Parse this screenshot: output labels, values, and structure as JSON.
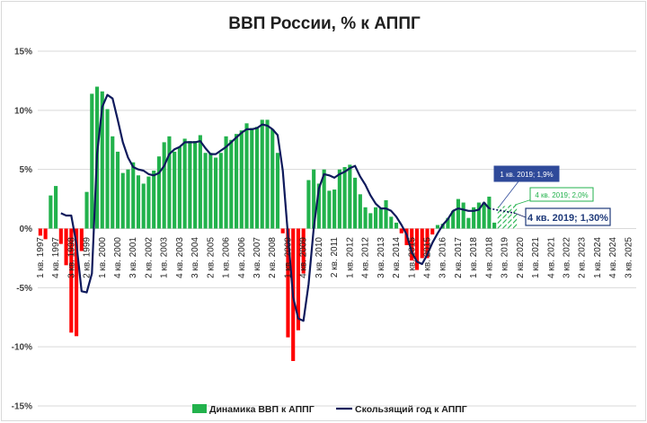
{
  "chart_data": {
    "type": "bar",
    "title": "ВВП России, % к АППГ",
    "xlabel": "",
    "ylabel": "",
    "ylim": [
      -15,
      15
    ],
    "yticks": [
      "15%",
      "10%",
      "5%",
      "0%",
      "-5%",
      "-10%",
      "-15%"
    ],
    "grid": true,
    "legend_position": "bottom",
    "colors": {
      "bars": "#22b24c",
      "negative_bars": "#ff0000",
      "line": "#0f1a5c",
      "forecast_box": "#2f4a9a",
      "forecast_text": "#1f3a7a",
      "forecast_green": "#22b24c"
    },
    "x_tick_labels": [
      "1 кв. 1997",
      "4 кв. 1997",
      "3 кв. 1998",
      "2 кв. 1999",
      "1 кв. 2000",
      "4 кв. 2000",
      "3 кв. 2001",
      "2 кв. 2002",
      "1 кв. 2003",
      "4 кв. 2003",
      "3 кв. 2004",
      "2 кв. 2005",
      "1 кв. 2006",
      "4 кв. 2006",
      "3 кв. 2007",
      "2 кв. 2008",
      "1 кв. 2009",
      "4 кв. 2009",
      "3 кв. 2010",
      "2 кв. 2011",
      "1 кв. 2012",
      "4 кв. 2012",
      "3 кв. 2013",
      "2 кв. 2014",
      "1 кв. 2015",
      "4 кв. 2015",
      "3 кв. 2016",
      "2 кв. 2017",
      "1 кв. 2018",
      "4 кв. 2018",
      "3 кв. 2019",
      "2 кв. 2020",
      "1 кв. 2021",
      "4 кв. 2021",
      "3 кв. 2022",
      "2 кв. 2023",
      "1 кв. 2024",
      "4 кв. 2024",
      "3 кв. 2025"
    ],
    "series": [
      {
        "name": "Динамика ВВП к АППГ",
        "type": "bar",
        "values": [
          -0.6,
          -0.9,
          2.8,
          3.6,
          -1.3,
          -3.1,
          -8.8,
          -9.1,
          -1.9,
          3.1,
          11.4,
          12.0,
          11.6,
          10.1,
          7.8,
          6.5,
          4.7,
          5.0,
          5.6,
          4.5,
          3.8,
          4.4,
          4.9,
          6.1,
          7.3,
          7.8,
          6.5,
          6.9,
          7.6,
          7.4,
          7.4,
          7.9,
          6.4,
          6.4,
          6.0,
          6.4,
          7.8,
          7.5,
          8.0,
          8.3,
          8.9,
          8.5,
          8.6,
          9.2,
          9.2,
          8.4,
          6.4,
          -0.4,
          -9.2,
          -11.2,
          -8.6,
          -3.8,
          4.1,
          5.0,
          3.8,
          5.0,
          3.2,
          3.3,
          5.0,
          5.2,
          5.4,
          4.3,
          2.9,
          1.8,
          1.3,
          1.8,
          1.7,
          2.4,
          1.0,
          0.5,
          -0.4,
          -1.4,
          -2.7,
          -3.5,
          -2.5,
          -2.5,
          -0.5,
          0.3,
          0.4,
          0.9,
          1.5,
          2.5,
          2.2,
          0.9,
          1.8,
          2.2,
          2.2,
          2.7,
          0.5
        ],
        "forecast_values": [
          1.9,
          1.9,
          2.0,
          2.0
        ]
      },
      {
        "name": "Скользящий год к АППГ",
        "type": "line",
        "values": [
          null,
          null,
          null,
          null,
          1.3,
          1.1,
          1.1,
          -1.3,
          -5.3,
          -5.4,
          -3.8,
          6.3,
          10.3,
          11.3,
          11.0,
          9.2,
          7.3,
          6.0,
          5.2,
          5.0,
          4.9,
          4.6,
          4.5,
          4.7,
          5.3,
          6.3,
          6.7,
          6.9,
          7.3,
          7.3,
          7.3,
          7.4,
          6.8,
          6.3,
          6.3,
          6.6,
          6.9,
          7.3,
          7.7,
          8.1,
          8.4,
          8.4,
          8.5,
          8.8,
          8.7,
          8.4,
          7.9,
          4.9,
          -0.6,
          -5.8,
          -7.6,
          -7.8,
          -4.7,
          0.1,
          3.4,
          4.6,
          4.5,
          4.3,
          4.6,
          4.8,
          5.1,
          5.3,
          4.4,
          3.7,
          2.8,
          2.1,
          1.7,
          1.7,
          1.5,
          1.0,
          0.3,
          -0.5,
          -2.0,
          -2.8,
          -3.0,
          -2.2,
          -1.2,
          -0.4,
          0.3,
          0.8,
          1.5,
          1.7,
          1.6,
          1.5,
          1.5,
          1.6,
          2.2,
          1.7
        ],
        "forecast_values": [
          1.3
        ]
      }
    ],
    "annotations": [
      {
        "text": "1 кв. 2019; 1,9%"
      },
      {
        "text": "4 кв. 2019; 2,0%"
      },
      {
        "text": "4 кв. 2019; 1,30%"
      }
    ]
  }
}
